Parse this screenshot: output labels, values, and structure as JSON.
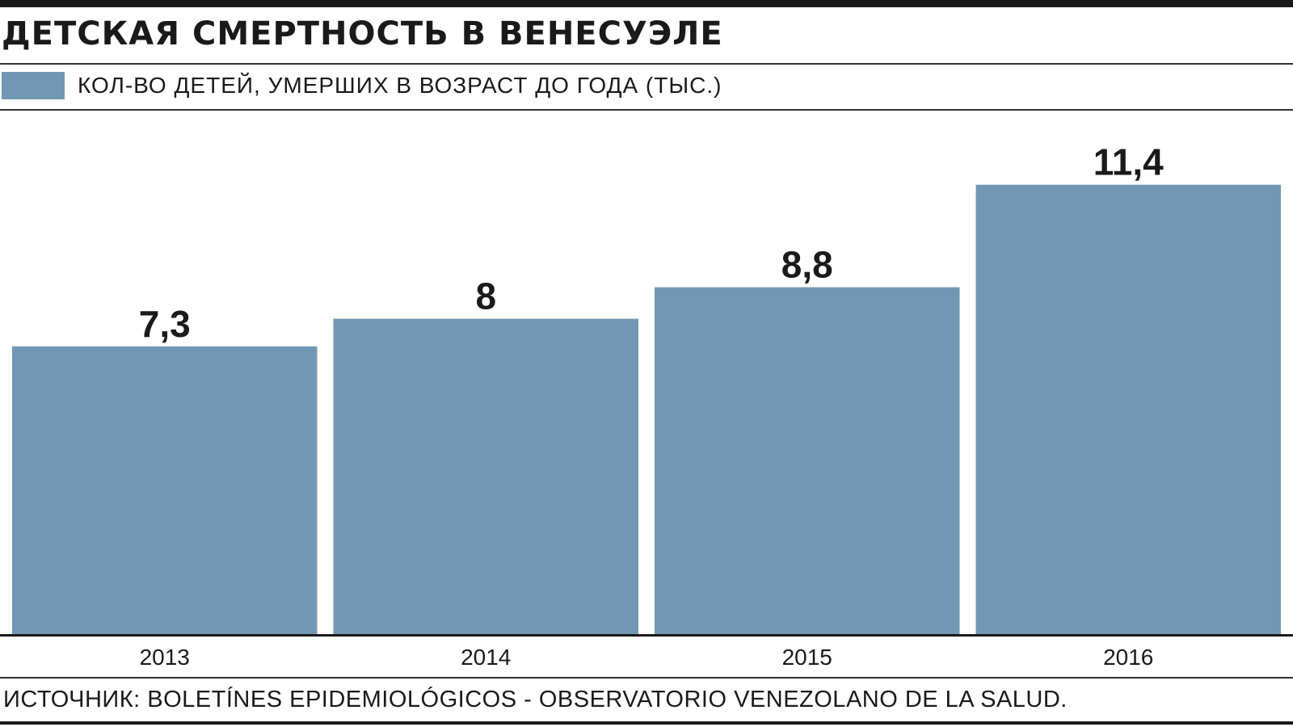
{
  "colors": {
    "bar": "#7297b3",
    "axis": "#1a1a1a",
    "text": "#1a1a1a"
  },
  "chart_data": {
    "type": "bar",
    "title": "ДЕТСКАЯ СМЕРТНОСТЬ В ВЕНЕСУЭЛЕ",
    "categories": [
      "2013",
      "2014",
      "2015",
      "2016"
    ],
    "series": [
      {
        "name": "КОЛ-ВО ДЕТЕЙ, УМЕРШИХ В ВОЗРАСТ ДО ГОДА (ТЫС.)",
        "values": [
          7.3,
          8,
          8.8,
          11.4
        ]
      }
    ],
    "value_labels": [
      "7,3",
      "8",
      "8,8",
      "11,4"
    ],
    "legend": "top-left",
    "grid": false,
    "source": "ИСТОЧНИК: BOLETÍNES EPIDEMIOLÓGICOS - OBSERVATORIO VENEZOLANO DE LA SALUD."
  }
}
